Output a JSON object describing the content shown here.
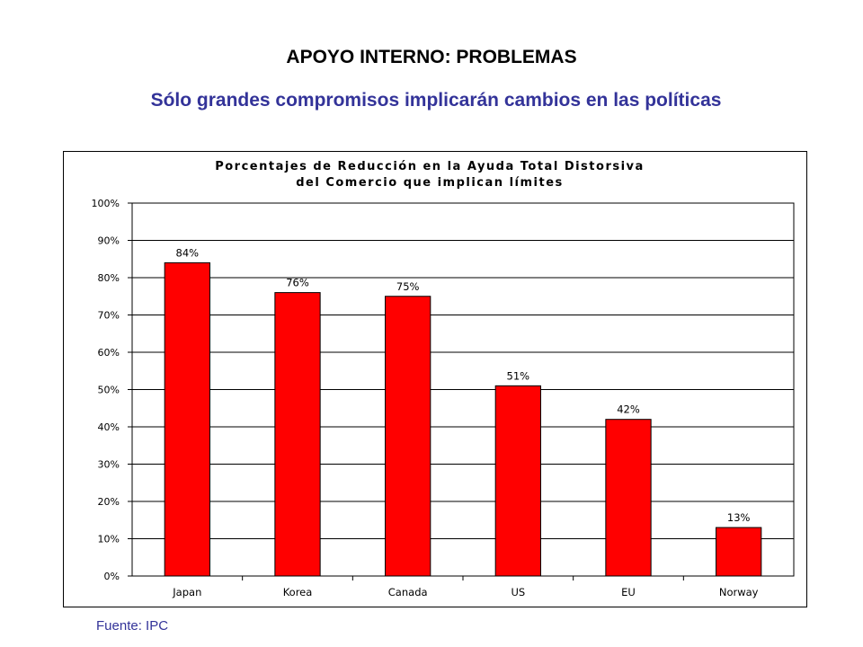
{
  "slide": {
    "title": "APOYO INTERNO: PROBLEMAS",
    "subtitle": "Sólo  grandes compromisos implicarán cambios en las políticas",
    "source": "Fuente: IPC"
  },
  "colors": {
    "bar": "#ff0000",
    "title": "#000000",
    "subtitle": "#333399",
    "plot_background": "#ffffff"
  },
  "chart_data": {
    "type": "bar",
    "title_lines": [
      "Porcentajes de Reducción en la Ayuda Total Distorsiva",
      "del Comercio que implican límites"
    ],
    "categories": [
      "Japan",
      "Korea",
      "Canada",
      "US",
      "EU",
      "Norway"
    ],
    "values": [
      84,
      76,
      75,
      51,
      42,
      13
    ],
    "data_labels": [
      "84%",
      "76%",
      "75%",
      "51%",
      "42%",
      "13%"
    ],
    "ylim": [
      0,
      100
    ],
    "yticks": [
      0,
      10,
      20,
      30,
      40,
      50,
      60,
      70,
      80,
      90,
      100
    ],
    "ytick_labels": [
      "0%",
      "10%",
      "20%",
      "30%",
      "40%",
      "50%",
      "60%",
      "70%",
      "80%",
      "90%",
      "100%"
    ],
    "grid": true,
    "legend": "none"
  }
}
